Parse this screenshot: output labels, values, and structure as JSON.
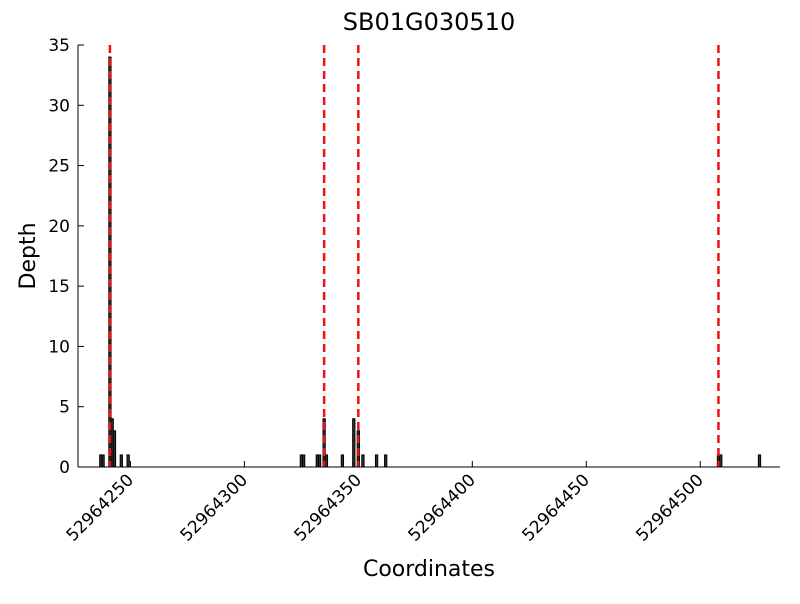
{
  "chart_data": {
    "type": "bar",
    "title": "SB01G030510",
    "x_label": "Coordinates",
    "y_label": "Depth",
    "x": [
      52964237,
      52964238,
      52964241,
      52964242,
      52964243,
      52964246,
      52964249,
      52964325,
      52964326,
      52964332,
      52964333,
      52964335,
      52964336,
      52964343,
      52964348,
      52964350,
      52964352,
      52964358,
      52964362,
      52964508,
      52964509,
      52964526
    ],
    "values": [
      1,
      1,
      34,
      4,
      3,
      1,
      1,
      1,
      1,
      1,
      1,
      4,
      1,
      1,
      4,
      3,
      1,
      1,
      1,
      1,
      1,
      1
    ],
    "color": "#333333",
    "vlines": [
      52964241,
      52964335,
      52964350,
      52964508
    ],
    "vline_color": "#ee1111",
    "xlim": [
      52964227,
      52964535
    ],
    "xticks": [
      52964250,
      52964300,
      52964350,
      52964400,
      52964450,
      52964500
    ],
    "ylim": [
      0,
      35
    ],
    "yticks": [
      0,
      5,
      10,
      15,
      20,
      25,
      30,
      35
    ]
  }
}
